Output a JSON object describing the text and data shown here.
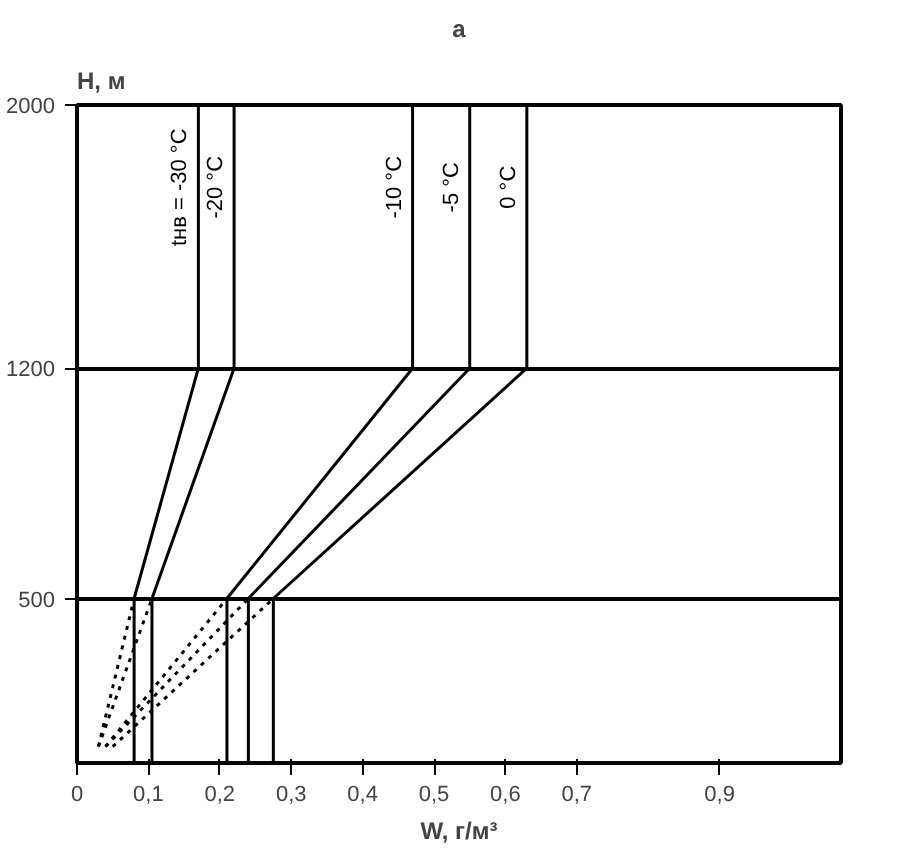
{
  "chart_data": {
    "type": "line",
    "title": "а",
    "xlabel": "W, г/м³",
    "ylabel": "Н, м",
    "xlim": [
      0,
      1.07
    ],
    "ylim": [
      0,
      2000
    ],
    "xticks": [
      0,
      {
        "value": 0.1,
        "label": "0,1"
      },
      {
        "value": 0.2,
        "label": "0,2"
      },
      {
        "value": 0.3,
        "label": "0,3"
      },
      {
        "value": 0.4,
        "label": "0,4"
      },
      {
        "value": 0.5,
        "label": "0,5"
      },
      {
        "value": 0.6,
        "label": "0,6"
      },
      {
        "value": 0.7,
        "label": "0,7"
      },
      {
        "value": 0.9,
        "label": "0,9"
      }
    ],
    "yticks": [
      500,
      1200,
      2000
    ],
    "grid": "y",
    "marker": "none",
    "series": [
      {
        "name": "tнв = -30 °C",
        "color": "#000000",
        "x": [
          0.08,
          0.08,
          0.17,
          0.17
        ],
        "values": [
          0,
          500,
          1200,
          2000
        ]
      },
      {
        "name": "-20 °C",
        "color": "#000000",
        "x": [
          0.105,
          0.105,
          0.22,
          0.22
        ],
        "values": [
          0,
          500,
          1200,
          2000
        ]
      },
      {
        "name": "-10 °C",
        "color": "#000000",
        "x": [
          0.21,
          0.21,
          0.47,
          0.47
        ],
        "values": [
          0,
          500,
          1200,
          2000
        ]
      },
      {
        "name": "-5 °C",
        "color": "#000000",
        "x": [
          0.24,
          0.24,
          0.55,
          0.55
        ],
        "values": [
          0,
          500,
          1200,
          2000
        ]
      },
      {
        "name": "0 °C",
        "color": "#000000",
        "x": [
          0.275,
          0.275,
          0.63,
          0.63
        ],
        "values": [
          0,
          500,
          1200,
          2000
        ]
      },
      {
        "color": "#000000",
        "line_style": "dotted",
        "x": [
          0.03,
          0.08
        ],
        "values": [
          50,
          500
        ]
      },
      {
        "color": "#000000",
        "line_style": "dotted",
        "x": [
          0.03,
          0.105
        ],
        "values": [
          50,
          500
        ]
      },
      {
        "color": "#000000",
        "line_style": "dotted",
        "x": [
          0.04,
          0.21
        ],
        "values": [
          50,
          500
        ]
      },
      {
        "color": "#000000",
        "line_style": "dotted",
        "x": [
          0.04,
          0.24
        ],
        "values": [
          50,
          500
        ]
      },
      {
        "color": "#000000",
        "line_style": "dotted",
        "x": [
          0.05,
          0.275
        ],
        "values": [
          50,
          500
        ]
      }
    ]
  }
}
